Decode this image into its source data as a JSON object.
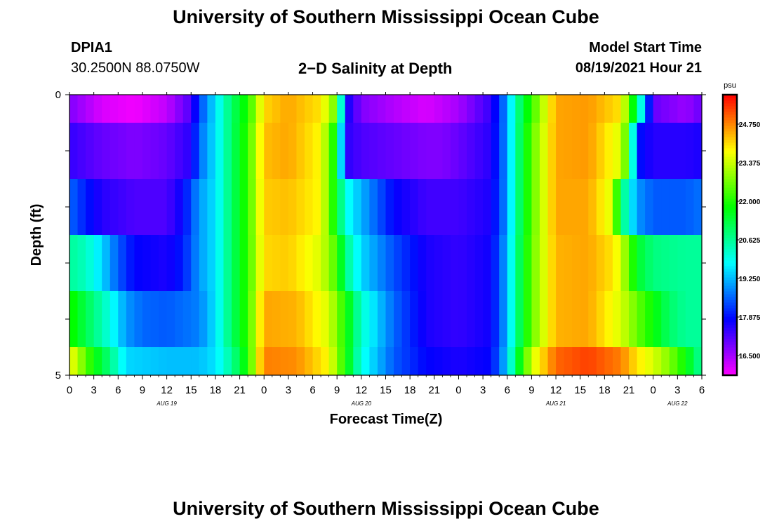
{
  "header": {
    "title": "University of Southern Mississippi Ocean Cube",
    "station": "DPIA1",
    "coords": "30.2500N  88.0750W",
    "subtitle": "2−D Salinity at Depth",
    "model_label": "Model Start Time",
    "model_time": "08/19/2021 Hour 21",
    "footer_title": "University of Southern Mississippi Ocean Cube"
  },
  "chart_data": {
    "type": "heatmap",
    "title": "2−D Salinity at Depth",
    "xlabel": "Forecast Time(Z)",
    "ylabel": "Depth (ft)",
    "x_tick_labels": [
      "0",
      "3",
      "6",
      "9",
      "12",
      "15",
      "18",
      "21",
      "0",
      "3",
      "6",
      "9",
      "12",
      "15",
      "18",
      "21",
      "0",
      "3",
      "6",
      "9",
      "12",
      "15",
      "18",
      "21",
      "0",
      "3",
      "6"
    ],
    "x_range_hours": [
      0,
      78
    ],
    "day_labels": [
      {
        "label": "AUG 19",
        "hour": 12
      },
      {
        "label": "AUG 20",
        "hour": 36
      },
      {
        "label": "AUG 21",
        "hour": 60
      },
      {
        "label": "AUG 22",
        "hour": 75
      }
    ],
    "y_tick_labels": [
      "0",
      "5"
    ],
    "y_range": [
      0,
      5
    ],
    "colorbar": {
      "unit": "psu",
      "min": 15.8,
      "max": 25.8,
      "tick_values": [
        16.5,
        17.875,
        19.25,
        20.625,
        22.0,
        23.375,
        24.75
      ],
      "tick_labels": [
        "16.500",
        "17.875",
        "19.250",
        "20.625",
        "22.000",
        "23.375",
        "24.750"
      ]
    },
    "layers": [
      {
        "depth_top": 0,
        "depth_bottom": 0.5,
        "hours": [
          0,
          4,
          8,
          12,
          15,
          16,
          18,
          20,
          22,
          24,
          27,
          31,
          33,
          34,
          36,
          40,
          44,
          46,
          48,
          52,
          54,
          55,
          57,
          60,
          64,
          68,
          70,
          72,
          76,
          78
        ],
        "values": [
          16.8,
          16.1,
          15.9,
          16.3,
          17.2,
          18.3,
          19.6,
          21.0,
          22.0,
          24.1,
          24.5,
          24.0,
          22.5,
          17.8,
          16.8,
          16.4,
          16.1,
          16.3,
          16.5,
          17.4,
          19.0,
          20.5,
          22.2,
          24.5,
          24.6,
          24.0,
          21.0,
          17.0,
          16.6,
          17.0
        ]
      },
      {
        "depth_top": 0.5,
        "depth_bottom": 1.5,
        "hours": [
          0,
          4,
          8,
          12,
          15,
          16,
          18,
          20,
          22,
          24,
          27,
          31,
          33,
          34,
          36,
          40,
          44,
          46,
          48,
          52,
          54,
          55,
          57,
          60,
          64,
          68,
          69,
          70,
          72,
          76,
          78
        ],
        "values": [
          17.4,
          17.0,
          16.8,
          17.0,
          17.5,
          18.6,
          19.6,
          21.0,
          22.2,
          24.3,
          24.5,
          23.8,
          21.5,
          17.5,
          17.2,
          17.0,
          16.8,
          16.8,
          17.0,
          17.5,
          19.0,
          20.5,
          22.5,
          24.5,
          24.6,
          23.5,
          22.0,
          18.0,
          17.5,
          17.5,
          17.6
        ]
      },
      {
        "depth_top": 1.5,
        "depth_bottom": 2.5,
        "hours": [
          0,
          2,
          4,
          8,
          12,
          14,
          16,
          18,
          20,
          22,
          24,
          27,
          31,
          33,
          34,
          36,
          40,
          44,
          48,
          52,
          54,
          55,
          57,
          60,
          64,
          67,
          68,
          70,
          72,
          76,
          78
        ],
        "values": [
          18.6,
          18.0,
          17.5,
          17.2,
          17.2,
          17.8,
          19.0,
          19.6,
          21.0,
          22.2,
          24.2,
          24.3,
          23.8,
          21.5,
          20.0,
          19.2,
          17.8,
          17.3,
          17.3,
          17.6,
          19.0,
          20.5,
          22.5,
          24.5,
          24.5,
          23.5,
          21.0,
          19.0,
          18.5,
          18.5,
          18.7
        ]
      },
      {
        "depth_top": 2.5,
        "depth_bottom": 3.5,
        "hours": [
          0,
          2,
          4,
          6,
          8,
          12,
          14,
          16,
          18,
          20,
          22,
          24,
          27,
          31,
          33,
          34,
          36,
          40,
          44,
          48,
          52,
          54,
          55,
          57,
          60,
          64,
          67,
          68,
          70,
          72,
          76,
          78
        ],
        "values": [
          20.6,
          20.3,
          19.5,
          18.5,
          17.8,
          17.6,
          18.0,
          19.0,
          19.6,
          21.0,
          22.2,
          24.1,
          24.2,
          23.5,
          22.3,
          20.8,
          19.5,
          18.4,
          17.6,
          17.4,
          17.7,
          19.2,
          20.6,
          22.6,
          24.4,
          24.5,
          24.0,
          23.5,
          21.5,
          20.8,
          20.6,
          20.6
        ]
      },
      {
        "depth_top": 3.5,
        "depth_bottom": 4.5,
        "hours": [
          0,
          1,
          3,
          5,
          7,
          9,
          12,
          16,
          18,
          20,
          22,
          24,
          28,
          32,
          34,
          36,
          40,
          44,
          48,
          52,
          54,
          55,
          57,
          60,
          64,
          66,
          68,
          70,
          72,
          74,
          76,
          78
        ],
        "values": [
          22.0,
          21.6,
          20.8,
          20.0,
          19.0,
          18.6,
          18.5,
          18.8,
          19.6,
          21.0,
          22.2,
          24.5,
          24.4,
          23.5,
          22.0,
          20.2,
          18.6,
          17.6,
          17.4,
          17.7,
          19.2,
          20.6,
          22.6,
          24.4,
          24.5,
          24.0,
          23.5,
          22.6,
          21.8,
          21.0,
          20.6,
          20.6
        ]
      },
      {
        "depth_top": 4.5,
        "depth_bottom": 5,
        "hours": [
          0,
          1,
          3,
          5,
          7,
          12,
          16,
          18,
          20,
          22,
          23,
          24,
          28,
          32,
          34,
          36,
          40,
          44,
          48,
          52,
          54,
          55,
          57,
          60,
          64,
          68,
          70,
          72,
          74,
          76,
          78
        ],
        "values": [
          23.8,
          23.2,
          21.8,
          20.8,
          19.5,
          19.3,
          19.3,
          19.6,
          20.6,
          22.0,
          23.5,
          24.8,
          24.7,
          23.8,
          22.0,
          20.0,
          18.5,
          17.8,
          17.6,
          17.8,
          19.4,
          21.0,
          23.4,
          25.0,
          25.3,
          24.8,
          24.0,
          23.5,
          22.8,
          21.8,
          20.5
        ]
      }
    ]
  }
}
